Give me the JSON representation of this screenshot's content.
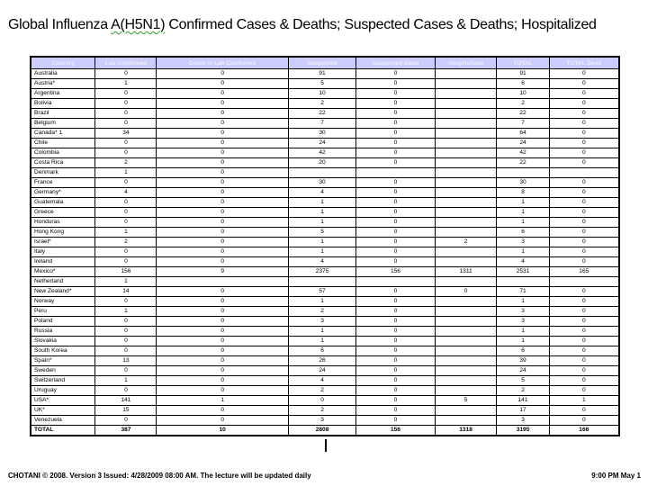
{
  "title": {
    "prefix": "Global Influenza ",
    "spellcheck_word": "A(H5N1)",
    "suffix": " Confirmed Cases & Deaths; Suspected Cases & Deaths; Hospitalized"
  },
  "colors": {
    "header_bg": "#CCCCFF",
    "header_text": "#EDEDFA",
    "table_border": "#000000",
    "spellcheck_underline": "#2aa02a"
  },
  "table": {
    "columns": [
      "Country",
      "Lab Confirmed",
      "Death  in Lab Confirmed",
      "Suspected",
      "Suspected Dead",
      "Hospitalized",
      "TOTAL",
      "TOTAL Dead"
    ],
    "rows": [
      [
        "Australia",
        "0",
        "0",
        "91",
        "0",
        "",
        "91",
        "0"
      ],
      [
        "Austria*",
        "1",
        "0",
        "5",
        "0",
        "",
        "6",
        "0"
      ],
      [
        "Argentina",
        "0",
        "0",
        "10",
        "0",
        "",
        "10",
        "0"
      ],
      [
        "Bolivia",
        "0",
        "0",
        "2",
        "0",
        "",
        "2",
        "0"
      ],
      [
        "Brazil",
        "0",
        "0",
        "22",
        "0",
        "",
        "22",
        "0"
      ],
      [
        "Belgium",
        "0",
        "0",
        "7",
        "0",
        "",
        "7",
        "0"
      ],
      [
        "Canada* 1",
        "34",
        "0",
        "30",
        "0",
        "",
        "64",
        "0"
      ],
      [
        "Chile",
        "0",
        "0",
        "24",
        "0",
        "",
        "24",
        "0"
      ],
      [
        "Colombia",
        "0",
        "0",
        "42",
        "0",
        "",
        "42",
        "0"
      ],
      [
        "Costa Rica",
        "2",
        "0",
        "20",
        "0",
        "",
        "22",
        "0"
      ],
      [
        "Denmark",
        "1",
        "0",
        "",
        "",
        "",
        "",
        ""
      ],
      [
        "France",
        "0",
        "0",
        "30",
        "0",
        "",
        "30",
        "0"
      ],
      [
        "Germany*",
        "4",
        "0",
        "4",
        "0",
        "",
        "8",
        "0"
      ],
      [
        "Guatemala",
        "0",
        "0",
        "1",
        "0",
        "",
        "1",
        "0"
      ],
      [
        "Greece",
        "0",
        "0",
        "1",
        "0",
        "",
        "1",
        "0"
      ],
      [
        "Honduras",
        "0",
        "0",
        "1",
        "0",
        "",
        "1",
        "0"
      ],
      [
        "Hong Kong",
        "1",
        "0",
        "5",
        "0",
        "",
        "6",
        "0"
      ],
      [
        "Israel*",
        "2",
        "0",
        "1",
        "0",
        "2",
        "3",
        "0"
      ],
      [
        "Italy",
        "0",
        "0",
        "1",
        "0",
        "",
        "1",
        "0"
      ],
      [
        "Ireland",
        "0",
        "0",
        "4",
        "0",
        "",
        "4",
        "0"
      ],
      [
        "Mexico*",
        "156",
        "9",
        "2375",
        "156",
        "1311",
        "2531",
        "165"
      ],
      [
        "Netherland",
        "1",
        "",
        "",
        "",
        "",
        "",
        ""
      ],
      [
        "New Zealand*",
        "14",
        "0",
        "57",
        "0",
        "0",
        "71",
        "0"
      ],
      [
        "Norway",
        "0",
        "0",
        "1",
        "0",
        "",
        "1",
        "0"
      ],
      [
        "Peru",
        "1",
        "0",
        "2",
        "0",
        "",
        "3",
        "0"
      ],
      [
        "Poland",
        "0",
        "0",
        "3",
        "0",
        "",
        "3",
        "0"
      ],
      [
        "Russia",
        "0",
        "0",
        "1",
        "0",
        "",
        "1",
        "0"
      ],
      [
        "Slovakia",
        "0",
        "0",
        "1",
        "0",
        "",
        "1",
        "0"
      ],
      [
        "South Korea",
        "0",
        "0",
        "6",
        "0",
        "",
        "6",
        "0"
      ],
      [
        "Spain*",
        "13",
        "0",
        "26",
        "0",
        "",
        "39",
        "0"
      ],
      [
        "Sweden",
        "0",
        "0",
        "24",
        "0",
        "",
        "24",
        "0"
      ],
      [
        "Switzerland",
        "1",
        "0",
        "4",
        "0",
        "",
        "5",
        "0"
      ],
      [
        "Uruguay",
        "0",
        "0",
        "2",
        "0",
        "",
        "2",
        "0"
      ],
      [
        "USA*",
        "141",
        "1",
        "0",
        "0",
        "5",
        "141",
        "1"
      ],
      [
        "UK*",
        "15",
        "0",
        "2",
        "0",
        "",
        "17",
        "0"
      ],
      [
        "Venezuela",
        "0",
        "0",
        "3",
        "0",
        "",
        "3",
        "0"
      ]
    ],
    "total_row": [
      "TOTAL",
      "387",
      "10",
      "2808",
      "156",
      "1318",
      "3195",
      "166"
    ]
  },
  "footer": {
    "left": "CHOTANI © 2008. Version 3 Issued: 4/28/2009 08:00 AM. The lecture will be updated daily",
    "right": "9:00 PM May 1"
  }
}
